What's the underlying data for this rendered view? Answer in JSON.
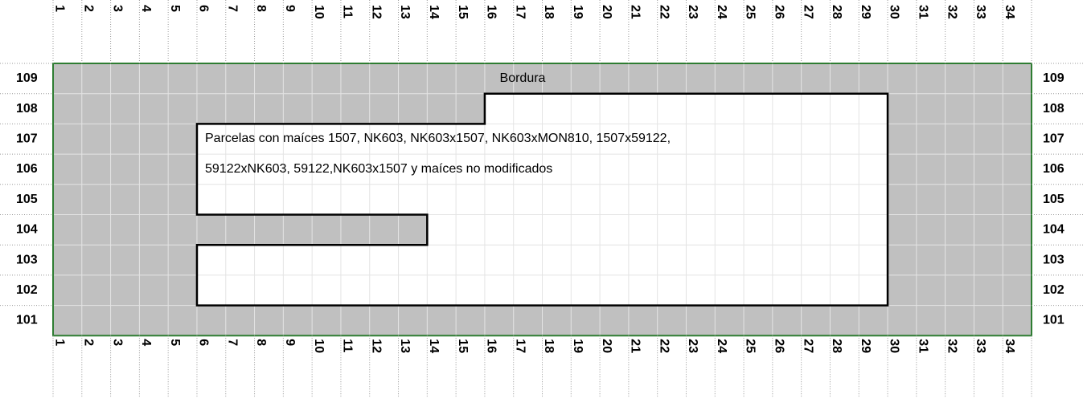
{
  "columns": [
    1,
    2,
    3,
    4,
    5,
    6,
    7,
    8,
    9,
    10,
    11,
    12,
    13,
    14,
    15,
    16,
    17,
    18,
    19,
    20,
    21,
    22,
    23,
    24,
    25,
    26,
    27,
    28,
    29,
    30,
    31,
    32,
    33,
    34
  ],
  "rows": [
    109,
    108,
    107,
    106,
    105,
    104,
    103,
    102,
    101
  ],
  "border_label": "Bordura",
  "plots_label": [
    "Parcelas con maíces 1507, NK603, NK603x1507, NK603xMON810, 1507x59122,",
    "59122xNK603, 59122,NK603x1507 y maíces no modificados"
  ]
}
